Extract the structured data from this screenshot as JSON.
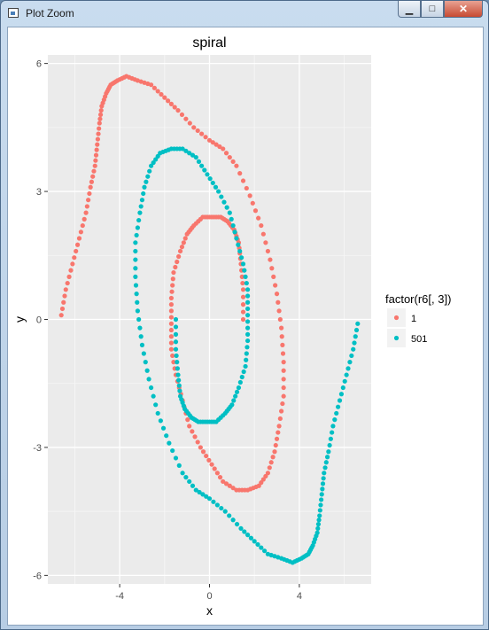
{
  "window": {
    "title": "Plot Zoom",
    "minimize_label": "▁",
    "maximize_label": "□",
    "close_label": "✕"
  },
  "chart_data": {
    "type": "scatter",
    "title": "spiral",
    "xlabel": "x",
    "ylabel": "y",
    "xlim": [
      -7.2,
      7.2
    ],
    "ylim": [
      -6.2,
      6.2
    ],
    "xticks": [
      -4,
      0,
      4
    ],
    "xtick_labels": [
      "-4",
      "0",
      "4"
    ],
    "yticks": [
      -6,
      -3,
      0,
      3,
      6
    ],
    "ytick_labels": [
      "-6",
      "-3",
      "0",
      "3",
      "6"
    ],
    "grid": true,
    "legend": {
      "title": "factor(r6[, 3])",
      "position": "right"
    },
    "series": [
      {
        "name": "1",
        "color": "#F8766D",
        "x": [
          1.5,
          1.5,
          1.4,
          1.3,
          1.1,
          0.8,
          0.5,
          0.1,
          -0.3,
          -0.7,
          -1.0,
          -1.3,
          -1.6,
          -1.7,
          -1.7,
          -1.7,
          -1.5,
          -1.2,
          -0.9,
          -0.4,
          0.1,
          0.6,
          1.2,
          1.7,
          2.2,
          2.6,
          2.9,
          3.1,
          3.3,
          3.3,
          3.2,
          3.0,
          2.7,
          2.3,
          1.8,
          1.2,
          0.6,
          0.0,
          -0.7,
          -1.4,
          -2.0,
          -2.6,
          -3.2,
          -3.7,
          -4.1,
          -4.4,
          -4.6,
          -4.8,
          -4.9,
          -5.0,
          -5.1,
          -5.3,
          -5.5,
          -5.8,
          -6.1,
          -6.4,
          -6.6
        ],
        "y": [
          0.0,
          0.7,
          1.3,
          1.8,
          2.1,
          2.3,
          2.4,
          2.4,
          2.4,
          2.2,
          2.0,
          1.6,
          1.1,
          0.5,
          -0.1,
          -0.7,
          -1.3,
          -1.9,
          -2.5,
          -3.0,
          -3.4,
          -3.8,
          -4.0,
          -4.0,
          -3.9,
          -3.6,
          -3.1,
          -2.5,
          -1.8,
          -1.0,
          -0.2,
          0.6,
          1.4,
          2.2,
          2.9,
          3.6,
          4.0,
          4.2,
          4.5,
          4.9,
          5.2,
          5.5,
          5.6,
          5.7,
          5.6,
          5.5,
          5.3,
          5.0,
          4.6,
          4.1,
          3.6,
          3.1,
          2.5,
          1.9,
          1.3,
          0.7,
          0.1
        ]
      },
      {
        "name": "501",
        "color": "#00BFC4",
        "x": [
          -1.5,
          -1.5,
          -1.4,
          -1.3,
          -1.1,
          -0.8,
          -0.5,
          -0.1,
          0.3,
          0.7,
          1.0,
          1.3,
          1.6,
          1.7,
          1.7,
          1.7,
          1.5,
          1.2,
          0.9,
          0.4,
          -0.1,
          -0.6,
          -1.2,
          -1.7,
          -2.2,
          -2.6,
          -2.9,
          -3.1,
          -3.3,
          -3.3,
          -3.2,
          -3.0,
          -2.7,
          -2.3,
          -1.8,
          -1.2,
          -0.6,
          0.0,
          0.7,
          1.4,
          2.0,
          2.6,
          3.2,
          3.7,
          4.1,
          4.4,
          4.6,
          4.8,
          4.9,
          5.0,
          5.1,
          5.3,
          5.5,
          5.8,
          6.1,
          6.4,
          6.6
        ],
        "y": [
          0.0,
          -0.7,
          -1.3,
          -1.8,
          -2.1,
          -2.3,
          -2.4,
          -2.4,
          -2.4,
          -2.2,
          -2.0,
          -1.6,
          -1.1,
          -0.5,
          0.1,
          0.7,
          1.3,
          1.9,
          2.5,
          3.0,
          3.4,
          3.8,
          4.0,
          4.0,
          3.9,
          3.6,
          3.1,
          2.5,
          1.8,
          1.0,
          0.2,
          -0.6,
          -1.4,
          -2.2,
          -2.9,
          -3.6,
          -4.0,
          -4.2,
          -4.5,
          -4.9,
          -5.2,
          -5.5,
          -5.6,
          -5.7,
          -5.6,
          -5.5,
          -5.3,
          -5.0,
          -4.6,
          -4.1,
          -3.6,
          -3.1,
          -2.5,
          -1.9,
          -1.3,
          -0.7,
          -0.1
        ]
      }
    ]
  }
}
